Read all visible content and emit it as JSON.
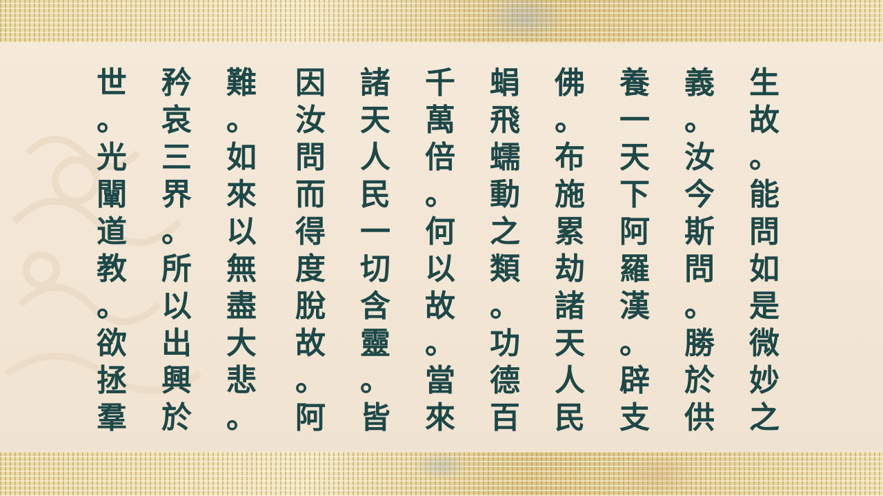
{
  "colors": {
    "text": "#1d4848",
    "panel": "#f4e8d8",
    "border_gold": "#e3cf94"
  },
  "columns": [
    "生故。能問如是微妙之",
    "義。汝今斯問。勝於供",
    "養一天下阿羅漢。辟支",
    "佛。布施累劫諸天人民",
    "蜎飛蠕動之類。功德百",
    "千萬倍。何以故。當來",
    "諸天人民一切含靈。皆",
    "因汝問而得度脫故。阿",
    "難。如來以無盡大悲。",
    "矜哀三界。所以出興於",
    "世。光闡道教。欲拯羣"
  ]
}
